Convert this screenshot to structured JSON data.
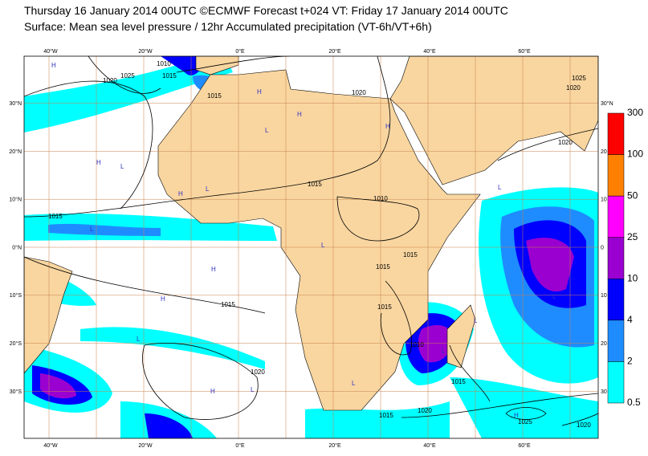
{
  "header": {
    "title": "Thursday 16 January 2014 00UTC ©ECMWF Forecast t+024 VT: Friday 17 January 2014 00UTC",
    "subtitle": "Surface: Mean sea level pressure / 12hr Accumulated precipitation (VT-6h/VT+6h)"
  },
  "map": {
    "lon_labels": [
      "40°W",
      "20°W",
      "0°E",
      "20°E",
      "40°E",
      "60°E"
    ],
    "lat_labels_left": [
      "30°N",
      "20°N",
      "10°N",
      "0°N",
      "10°S",
      "20°S",
      "30°S"
    ],
    "lat_labels_right": [
      "30°N",
      "20",
      "10",
      "0",
      "10",
      "20",
      "30"
    ],
    "isobar_labels": [
      "1010",
      "1015",
      "1020",
      "1025",
      "1015",
      "1015",
      "1020",
      "1010",
      "1015",
      "1015",
      "1015",
      "1015",
      "1020",
      "1020",
      "1010",
      "1015",
      "1015",
      "1020",
      "1025",
      "1020",
      "1025",
      "1020",
      "1015"
    ],
    "markers": [
      "H",
      "L",
      "H",
      "H",
      "L",
      "H",
      "L",
      "L",
      "H",
      "L",
      "H",
      "L",
      "H",
      "L",
      "L",
      "L",
      "H",
      "L",
      "H",
      "L",
      "L",
      "H"
    ]
  },
  "legend": {
    "levels": [
      300,
      100,
      50,
      25,
      10,
      4,
      2,
      0.5
    ],
    "colors": [
      "#ff0000",
      "#ff8000",
      "#ff00ff",
      "#9a00d0",
      "#0000ff",
      "#1e8cff",
      "#00ffff"
    ]
  }
}
